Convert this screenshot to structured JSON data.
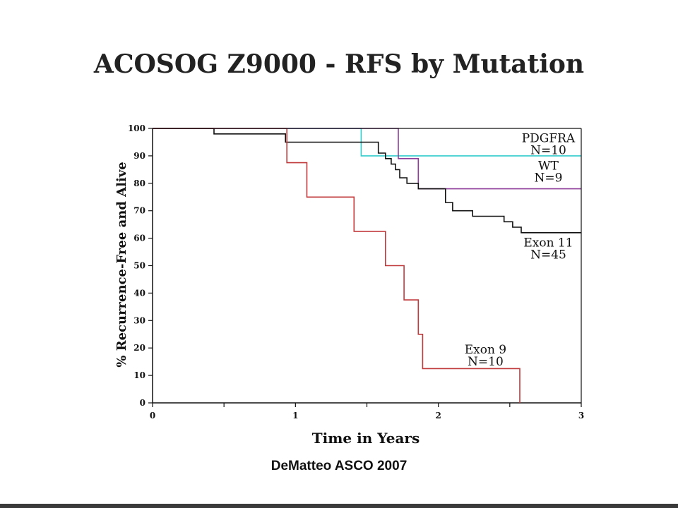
{
  "slide": {
    "title": "ACOSOG Z9000 - RFS by Mutation",
    "footer": "DeMatteo ASCO 2007"
  },
  "chart_data": {
    "type": "line",
    "step": true,
    "xlabel": "Time in Years",
    "ylabel": "% Recurrence-Free and Alive",
    "xlim": [
      0,
      3
    ],
    "ylim": [
      0,
      100
    ],
    "xticks": [
      0,
      0.5,
      1,
      1.5,
      2,
      2.5,
      3
    ],
    "xtick_labels": [
      "0",
      "",
      "1",
      "",
      "2",
      "",
      "3"
    ],
    "yticks": [
      0,
      10,
      20,
      30,
      40,
      50,
      60,
      70,
      80,
      90,
      100
    ],
    "grid": false,
    "series": [
      {
        "name": "PDGFRA",
        "n_label": "N=10",
        "color": "#33cccc",
        "x": [
          0,
          1.46,
          1.46,
          3.0
        ],
        "y": [
          100,
          100,
          90,
          90
        ]
      },
      {
        "name": "WT",
        "n_label": "N=9",
        "color": "#8e3d9a",
        "x": [
          0,
          1.72,
          1.72,
          1.86,
          1.86,
          3.0
        ],
        "y": [
          100,
          100,
          89,
          89,
          78,
          78
        ]
      },
      {
        "name": "Exon 11",
        "n_label": "N=45",
        "color": "#111111",
        "x": [
          0,
          0.43,
          0.43,
          0.93,
          0.93,
          1.58,
          1.58,
          1.63,
          1.63,
          1.67,
          1.67,
          1.7,
          1.7,
          1.73,
          1.73,
          1.78,
          1.78,
          1.86,
          1.86,
          2.05,
          2.05,
          2.1,
          2.1,
          2.24,
          2.24,
          2.46,
          2.46,
          2.52,
          2.52,
          2.58,
          2.58,
          3.0
        ],
        "y": [
          100,
          100,
          98,
          98,
          95,
          95,
          91,
          91,
          89,
          89,
          87,
          87,
          85,
          85,
          82,
          82,
          80,
          80,
          78,
          78,
          73,
          73,
          70,
          70,
          68,
          68,
          66,
          66,
          64,
          64,
          62,
          62
        ]
      },
      {
        "name": "Exon 9",
        "n_label": "N=10",
        "color": "#c0393b",
        "x": [
          0,
          0.94,
          0.94,
          1.08,
          1.08,
          1.41,
          1.41,
          1.63,
          1.63,
          1.76,
          1.76,
          1.86,
          1.86,
          1.89,
          1.89,
          2.57,
          2.57
        ],
        "y": [
          100,
          100,
          87.5,
          87.5,
          75,
          75,
          62.5,
          62.5,
          50,
          50,
          37.5,
          37.5,
          25,
          25,
          12.5,
          12.5,
          0
        ]
      }
    ],
    "annotations": [
      {
        "series": "PDGFRA",
        "lines": [
          "PDGFRA",
          "N=10"
        ],
        "at": [
          2.77,
          95
        ]
      },
      {
        "series": "WT",
        "lines": [
          "WT",
          "N=9"
        ],
        "at": [
          2.77,
          85
        ]
      },
      {
        "series": "Exon 11",
        "lines": [
          "Exon 11",
          "N=45"
        ],
        "at": [
          2.77,
          57
        ]
      },
      {
        "series": "Exon 9",
        "lines": [
          "Exon 9",
          "N=10"
        ],
        "at": [
          2.33,
          18
        ]
      }
    ]
  }
}
